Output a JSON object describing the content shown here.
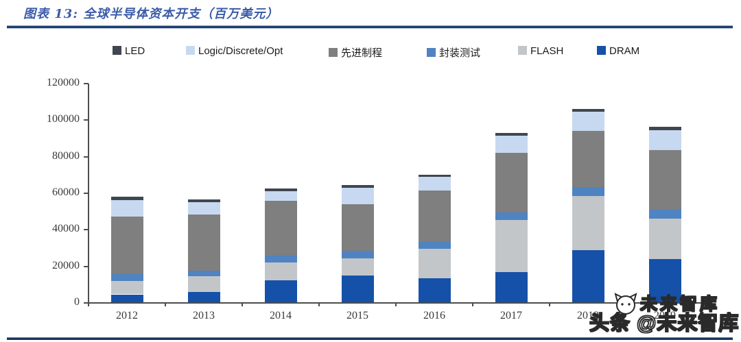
{
  "header": {
    "title": "图表 13:  全球半导体资本开支（百万美元）"
  },
  "chart_data": {
    "type": "bar",
    "stacked": true,
    "title": "全球半导体资本开支（百万美元）",
    "unit": "百万美元",
    "categories": [
      "2012",
      "2013",
      "2014",
      "2015",
      "2016",
      "2017",
      "2018",
      "2019"
    ],
    "series": [
      {
        "name": "DRAM",
        "color": "#1551a8",
        "values": [
          4700,
          6000,
          12500,
          15000,
          13500,
          17000,
          29000,
          24000
        ]
      },
      {
        "name": "FLASH",
        "color": "#c3c6c9",
        "values": [
          7200,
          8500,
          9500,
          9500,
          16000,
          28500,
          29500,
          22000
        ]
      },
      {
        "name": "封装测试",
        "color": "#4f83c2",
        "values": [
          3700,
          3000,
          4000,
          4000,
          4000,
          4000,
          5000,
          5000
        ]
      },
      {
        "name": "先进制程",
        "color": "#7f7f7f",
        "values": [
          31800,
          31000,
          30000,
          25500,
          28000,
          32500,
          30500,
          32500
        ]
      },
      {
        "name": "Logic/Discrete/Opt",
        "color": "#c7d9f0",
        "values": [
          8700,
          6600,
          5000,
          9000,
          7500,
          9500,
          10500,
          11000
        ]
      },
      {
        "name": "LED",
        "color": "#404650",
        "values": [
          2100,
          1500,
          1500,
          1500,
          1000,
          1500,
          1500,
          2000
        ]
      }
    ],
    "totals": [
      58200,
      56600,
      62500,
      64500,
      70000,
      93000,
      106000,
      96500
    ],
    "legend_order": [
      "LED",
      "Logic/Discrete/Opt",
      "先进制程",
      "封装测试",
      "FLASH",
      "DRAM"
    ],
    "legend_position": "top",
    "y_ticks": [
      "0",
      "20000",
      "40000",
      "60000",
      "80000",
      "100000",
      "120000"
    ],
    "ylim": [
      0,
      120000
    ],
    "grid": false
  },
  "watermark": {
    "small_text": "未来智库",
    "large_text": "头条 @未来智库",
    "icon": "cat-logo-icon"
  }
}
